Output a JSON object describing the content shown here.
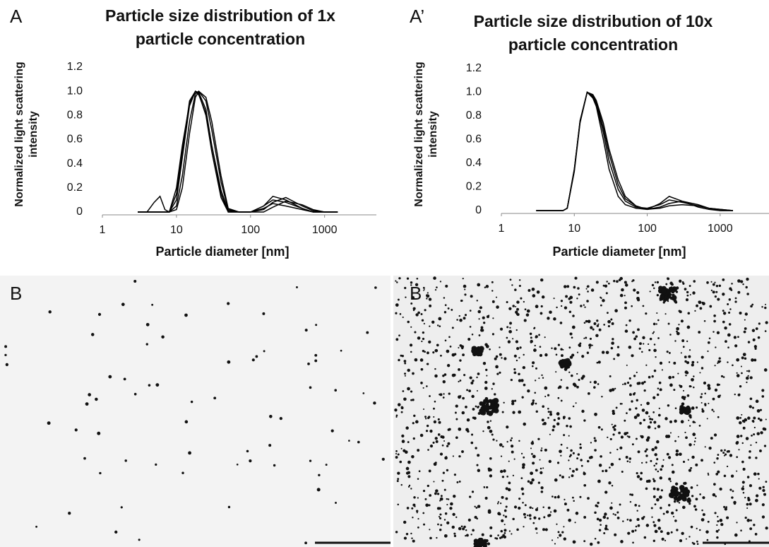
{
  "panel_labels": [
    "A",
    "A’",
    "B",
    "B’"
  ],
  "chart_data": [
    {
      "type": "line",
      "title": "Particle size distribution of 1x particle concentration",
      "xlabel": "Particle diameter [nm]",
      "ylabel": "Normalized light scattering intensity",
      "xscale": "log",
      "xlim": [
        1,
        5000
      ],
      "xticks": [
        1,
        10,
        100,
        1000
      ],
      "ylim": [
        0,
        1.2
      ],
      "yticks": [
        0,
        0.2,
        0.4,
        0.6,
        0.8,
        {
          "value": 1,
          "label": "1.0"
        },
        1.2
      ],
      "x": [
        3,
        4,
        5,
        6,
        7,
        8,
        10,
        12,
        15,
        18,
        20,
        25,
        30,
        40,
        50,
        70,
        100,
        150,
        200,
        300,
        500,
        700,
        1000,
        1500
      ],
      "series": [
        {
          "color": "#000000",
          "values": [
            0,
            0,
            0.08,
            0.13,
            0.02,
            0,
            0.2,
            0.55,
            0.9,
            1.0,
            0.98,
            0.8,
            0.5,
            0.12,
            0,
            0,
            0,
            0.05,
            0.1,
            0.08,
            0.03,
            0,
            0,
            0
          ]
        },
        {
          "color": "#000000",
          "values": [
            0,
            0,
            0,
            0,
            0,
            0,
            0.15,
            0.5,
            0.92,
            1.0,
            0.99,
            0.85,
            0.55,
            0.15,
            0,
            0,
            0,
            0.05,
            0.13,
            0.1,
            0.03,
            0,
            0,
            0
          ]
        },
        {
          "color": "#000000",
          "values": [
            0,
            0,
            0,
            0,
            0,
            0,
            0.05,
            0.3,
            0.75,
            0.98,
            1.0,
            0.92,
            0.68,
            0.25,
            0.02,
            0,
            0,
            0.02,
            0.08,
            0.12,
            0.05,
            0.01,
            0,
            0
          ]
        },
        {
          "color": "#000000",
          "values": [
            0,
            0,
            0,
            0,
            0,
            0,
            0.02,
            0.2,
            0.65,
            0.95,
            1.0,
            0.95,
            0.75,
            0.3,
            0.03,
            0,
            0,
            0,
            0.04,
            0.09,
            0.06,
            0.02,
            0,
            0
          ]
        },
        {
          "color": "#000000",
          "values": [
            0,
            0,
            0,
            0,
            0,
            0,
            0.1,
            0.45,
            0.88,
            1.0,
            0.97,
            0.82,
            0.55,
            0.18,
            0.01,
            0,
            0,
            0.03,
            0.07,
            0.05,
            0.02,
            0,
            0,
            0
          ]
        }
      ]
    },
    {
      "type": "line",
      "title": "Particle size distribution of 10x particle concentration",
      "xlabel": "Particle diameter [nm]",
      "ylabel": "Normalized light scattering intensity",
      "xscale": "log",
      "xlim": [
        1,
        5000
      ],
      "xticks": [
        1,
        10,
        100,
        1000
      ],
      "ylim": [
        0,
        1.2
      ],
      "yticks": [
        0,
        0.2,
        0.4,
        0.6,
        0.8,
        {
          "value": 1,
          "label": "1.0"
        },
        1.2
      ],
      "x": [
        3,
        4,
        5,
        6,
        7,
        8,
        10,
        12,
        15,
        18,
        20,
        25,
        30,
        40,
        50,
        70,
        100,
        150,
        200,
        300,
        500,
        700,
        1000,
        1500
      ],
      "series": [
        {
          "color": "#000000",
          "values": [
            0,
            0,
            0,
            0,
            0,
            0.02,
            0.35,
            0.75,
            1.0,
            0.95,
            0.88,
            0.6,
            0.35,
            0.12,
            0.05,
            0.02,
            0.01,
            0.06,
            0.12,
            0.08,
            0.03,
            0.01,
            0,
            0
          ]
        },
        {
          "color": "#000000",
          "values": [
            0,
            0,
            0,
            0,
            0,
            0.02,
            0.33,
            0.74,
            1.0,
            0.97,
            0.9,
            0.66,
            0.42,
            0.18,
            0.08,
            0.03,
            0.02,
            0.05,
            0.09,
            0.07,
            0.04,
            0.02,
            0,
            0
          ]
        },
        {
          "color": "#000000",
          "values": [
            0,
            0,
            0,
            0,
            0,
            0.02,
            0.34,
            0.76,
            1.0,
            0.96,
            0.92,
            0.7,
            0.48,
            0.22,
            0.1,
            0.04,
            0.01,
            0.03,
            0.06,
            0.08,
            0.05,
            0.02,
            0.01,
            0
          ]
        },
        {
          "color": "#000000",
          "values": [
            0,
            0,
            0,
            0,
            0,
            0.02,
            0.35,
            0.75,
            1.0,
            0.98,
            0.93,
            0.74,
            0.52,
            0.26,
            0.12,
            0.04,
            0.01,
            0.02,
            0.04,
            0.05,
            0.04,
            0.02,
            0.01,
            0
          ]
        }
      ]
    }
  ]
}
